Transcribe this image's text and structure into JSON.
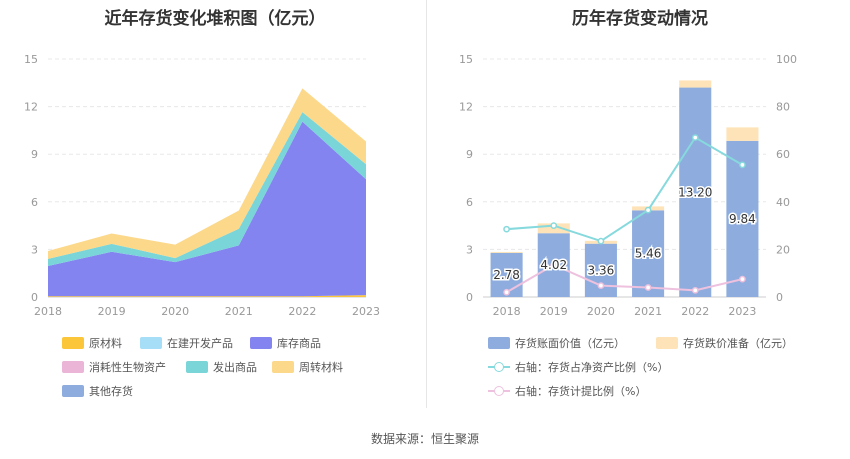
{
  "source_text": "数据来源：恒生聚源",
  "chart_data": [
    {
      "type": "area",
      "title": "近年存货变化堆积图（亿元）",
      "x": [
        "2018",
        "2019",
        "2020",
        "2021",
        "2022",
        "2023"
      ],
      "y_ticks": [
        "0",
        "3",
        "6",
        "9",
        "12",
        "15"
      ],
      "ylim": [
        0,
        15
      ],
      "stacked": true,
      "grid": true,
      "legend_position": "bottom",
      "series": [
        {
          "name": "原材料",
          "color": "#fcc63b",
          "values": [
            0.05,
            0.05,
            0.05,
            0.05,
            0.05,
            0.12
          ]
        },
        {
          "name": "在建开发产品",
          "color": "#a6def7",
          "values": [
            0.0,
            0.0,
            0.0,
            0.0,
            0.0,
            0.0
          ]
        },
        {
          "name": "库存商品",
          "color": "#8484f0",
          "values": [
            1.9,
            2.8,
            2.15,
            3.2,
            11.0,
            7.3
          ]
        },
        {
          "name": "消耗性生物资产",
          "color": "#eab5d6",
          "values": [
            0.0,
            0.0,
            0.0,
            0.0,
            0.0,
            0.0
          ]
        },
        {
          "name": "发出商品",
          "color": "#7ad5d8",
          "values": [
            0.45,
            0.5,
            0.25,
            1.05,
            0.6,
            0.95
          ]
        },
        {
          "name": "周转材料",
          "color": "#fcd88a",
          "values": [
            0.5,
            0.65,
            0.85,
            1.15,
            1.5,
            1.43
          ]
        },
        {
          "name": "其他存货",
          "color": "#8eadde",
          "values": [
            0.0,
            0.0,
            0.0,
            0.0,
            0.0,
            0.0
          ]
        }
      ]
    },
    {
      "type": "bar",
      "title": "历年存货变动情况",
      "categories": [
        "2018",
        "2019",
        "2020",
        "2021",
        "2022",
        "2023"
      ],
      "y_ticks_left": [
        "0",
        "3",
        "6",
        "9",
        "12",
        "15"
      ],
      "y_ticks_right": [
        "0",
        "20",
        "40",
        "60",
        "80",
        "100"
      ],
      "ylim_left": [
        0,
        15
      ],
      "ylim_right": [
        0,
        100
      ],
      "legend_position": "bottom",
      "series": [
        {
          "name": "存货账面价值（亿元）",
          "type": "bar",
          "axis": "left",
          "color": "#8eadde",
          "values": [
            2.78,
            4.02,
            3.36,
            5.46,
            13.2,
            9.84
          ],
          "labels": [
            "2.78",
            "4.02",
            "3.36",
            "5.46",
            "13.20",
            "9.84"
          ]
        },
        {
          "name": "存货跌价准备（亿元）",
          "type": "bar",
          "axis": "left",
          "color": "#fde3b7",
          "values": [
            0.06,
            0.62,
            0.18,
            0.25,
            0.45,
            0.85
          ]
        },
        {
          "name": "右轴：存货占净资产比例（%）",
          "type": "line",
          "axis": "right",
          "color": "#86d9dc",
          "values": [
            28.5,
            30.0,
            23.5,
            36.5,
            67.0,
            55.5
          ]
        },
        {
          "name": "右轴：存货计提比例（%）",
          "type": "line",
          "axis": "right",
          "color": "#eec1de",
          "values": [
            2.0,
            13.5,
            4.8,
            4.0,
            2.8,
            7.5
          ]
        }
      ]
    }
  ]
}
